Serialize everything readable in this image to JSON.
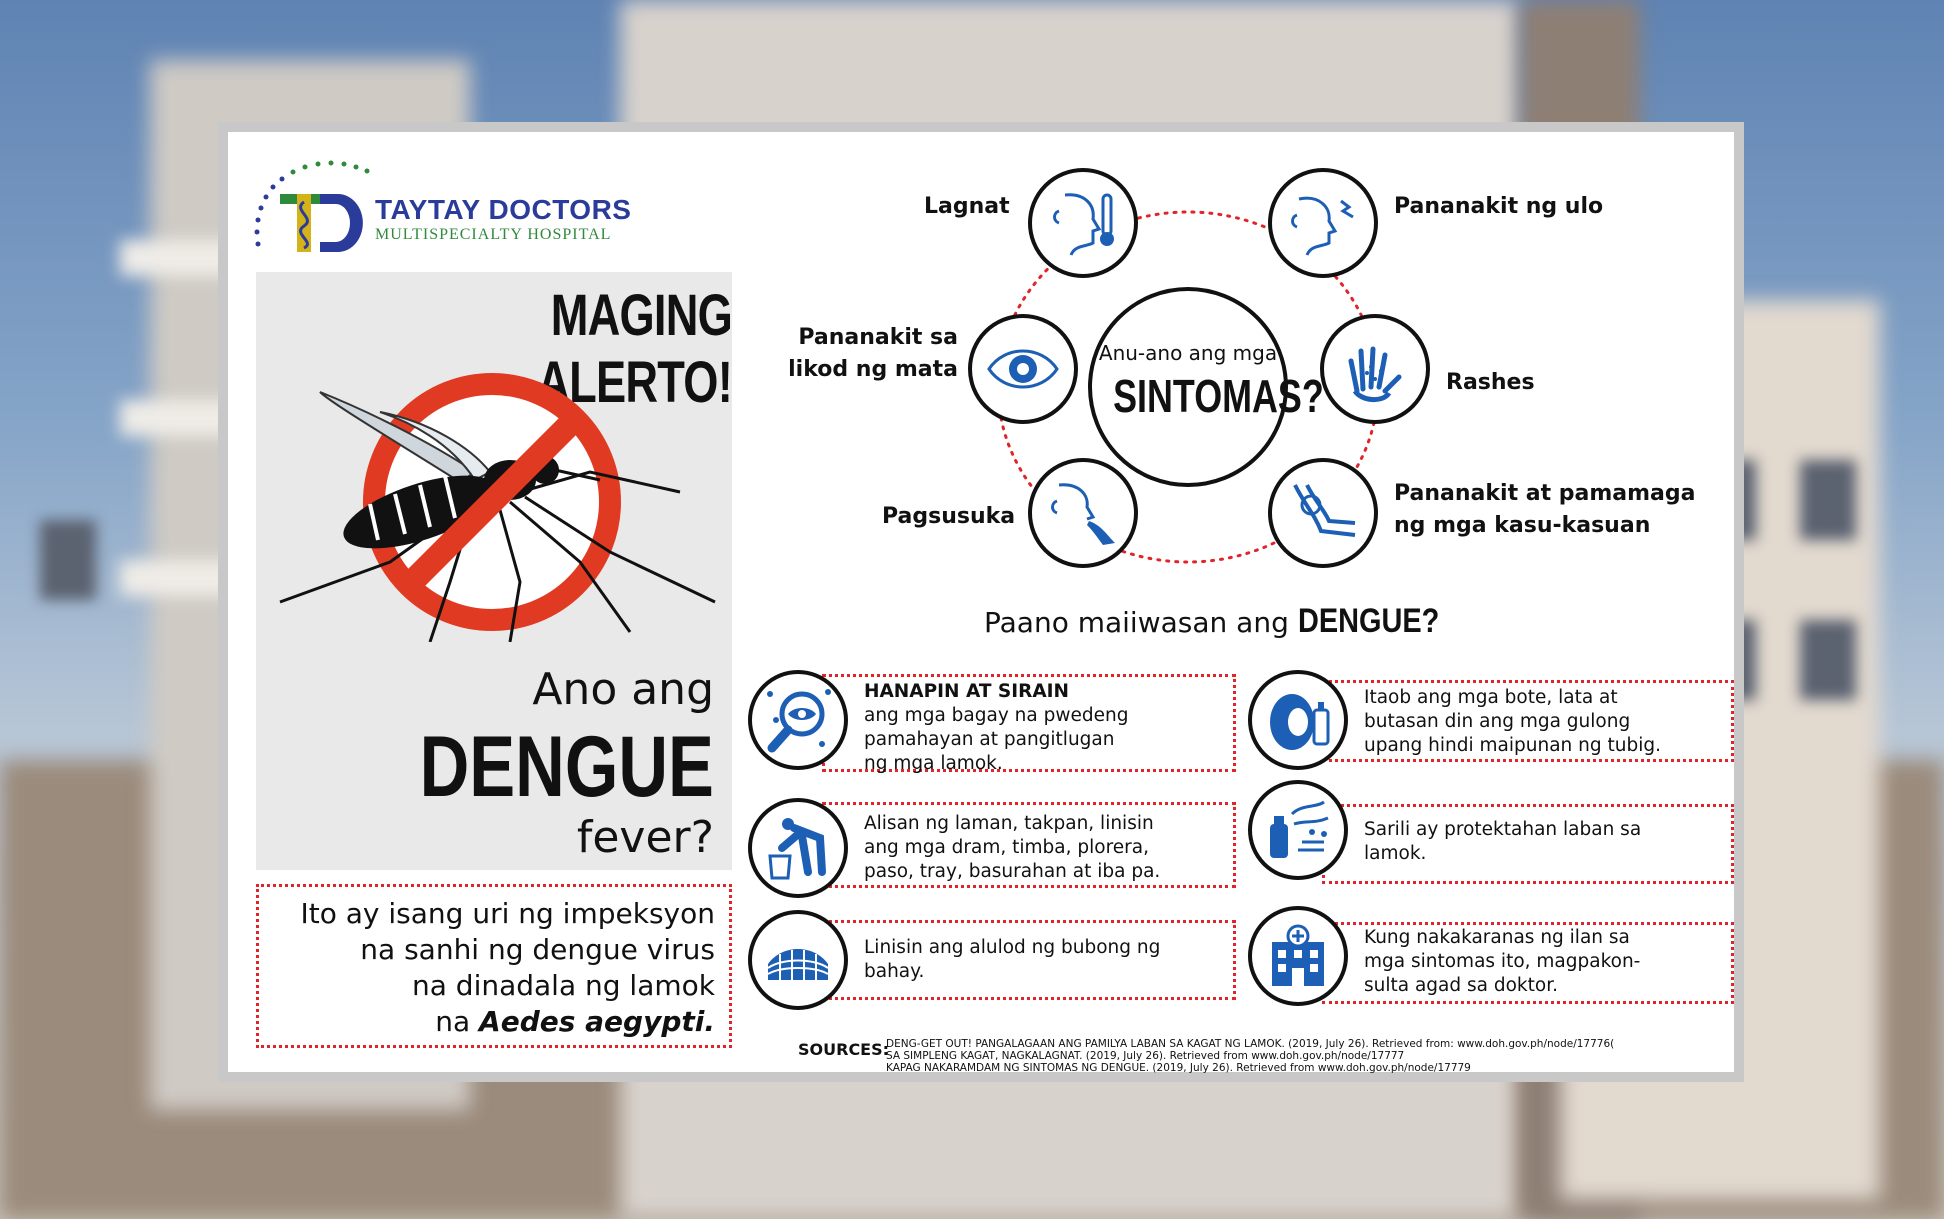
{
  "hospital": {
    "name": "TAYTAY DOCTORS",
    "subtitle": "MULTISPECIALTY HOSPITAL"
  },
  "left": {
    "alert": "MAGING ALERTO!",
    "question_line1": "Ano ang",
    "question_line2": "DENGUE",
    "question_line3": "fever?",
    "definition": [
      "Ito ay isang uri ng impeksyon",
      "na sanhi ng dengue virus",
      "na dinadala ng lamok",
      "na"
    ],
    "definition_species": "Aedes aegypti."
  },
  "symptoms": {
    "center_small": "Anu-ano ang mga",
    "center_big": "SINTOMAS?",
    "items": [
      {
        "label": "Lagnat"
      },
      {
        "label": "Pananakit ng ulo"
      },
      {
        "label_line1": "Pananakit sa",
        "label_line2": "likod ng mata"
      },
      {
        "label": "Rashes"
      },
      {
        "label": "Pagsusuka"
      },
      {
        "label_line1": "Pananakit at pamamaga",
        "label_line2": "ng mga kasu-kasuan"
      }
    ]
  },
  "prevention": {
    "title_prefix": "Paano maiiwasan ang",
    "title_bold": "DENGUE?",
    "left": [
      {
        "bold": "HANAPIN AT SIRAIN",
        "lines": [
          "ang mga bagay na pwedeng",
          "pamahayan at pangitlugan",
          "ng mga lamok."
        ]
      },
      {
        "lines": [
          "Alisan ng laman, takpan, linisin",
          "ang mga dram, timba, plorera,",
          "paso, tray, basurahan at iba pa."
        ]
      },
      {
        "lines": [
          "Linisin ang alulod ng bubong ng",
          "bahay."
        ]
      }
    ],
    "right": [
      {
        "lines": [
          "Itaob ang mga bote, lata at",
          "butasan din ang mga gulong",
          "upang hindi maipunan ng tubig."
        ]
      },
      {
        "lines": [
          "Sarili ay protektahan laban sa",
          "lamok."
        ]
      },
      {
        "lines": [
          "Kung nakakaranas ng ilan sa",
          "mga sintomas ito, magpakon-",
          "sulta agad sa doktor."
        ]
      }
    ]
  },
  "sources": {
    "label": "SOURCES:",
    "lines": [
      "DENG-GET OUT! PANGALAGAAN ANG PAMILYA LABAN SA KAGAT NG LAMOK. (2019, July 26). Retrieved from: www.doh.gov.ph/node/17776(",
      "SA SIMPLENG KAGAT, NAGKALAGNAT. (2019, July 26). Retrieved from www.doh.gov.ph/node/17777",
      "KAPAG NAKARAMDAM NG SINTOMAS NG DENGUE. (2019, July 26). Retrieved from www.doh.gov.ph/node/17779"
    ]
  },
  "colors": {
    "icon_blue": "#1d5fb4",
    "dot_red": "#e0242a",
    "logo_blue": "#2a3b9a",
    "logo_green": "#2f8a3c",
    "ban_red": "#e03b22"
  }
}
